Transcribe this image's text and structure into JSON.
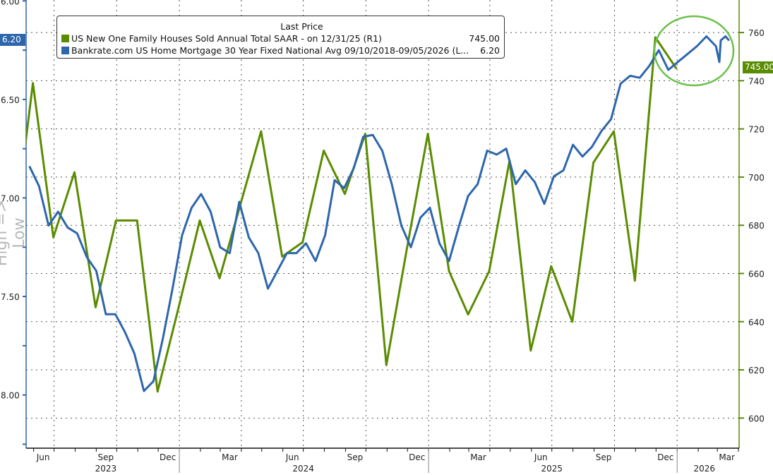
{
  "chart_data": {
    "type": "line",
    "ylabel_left": "High => Low",
    "legend": {
      "header": "Last Price",
      "placement": "top-left",
      "entries": [
        {
          "label": "US New One Family Houses Sold Annual Total SAAR -  on 12/31/25  (R1)",
          "value": "745.00",
          "color": "#5a8c00"
        },
        {
          "label": "Bankrate.com US Home Mortgage 30 Year Fixed National Avg 09/10/2018-09/05/2026  (L...",
          "value": "6.20",
          "color": "#2d66ab"
        }
      ]
    },
    "left_axis": {
      "range": [
        6.0,
        8.27
      ],
      "inverted": true,
      "ticks": [
        "6.00",
        "6.50",
        "7.00",
        "7.50",
        "8.00"
      ],
      "last_label": "6.20"
    },
    "right_axis": {
      "range": [
        587.5,
        773.5
      ],
      "ticks": [
        "600",
        "620",
        "640",
        "660",
        "680",
        "700",
        "720",
        "740",
        "760"
      ],
      "last_label": "745.00"
    },
    "x_axis": {
      "range": [
        "2023-05-21",
        "2026-04-02"
      ],
      "months": [
        {
          "label": "Jun",
          "date": "2023-06-15"
        },
        {
          "label": "Sep",
          "date": "2023-09-15"
        },
        {
          "label": "Dec",
          "date": "2023-12-15"
        },
        {
          "label": "Mar",
          "date": "2024-03-15"
        },
        {
          "label": "Jun",
          "date": "2024-06-15"
        },
        {
          "label": "Sep",
          "date": "2024-09-15"
        },
        {
          "label": "Dec",
          "date": "2024-12-15"
        },
        {
          "label": "Mar",
          "date": "2025-03-15"
        },
        {
          "label": "Jun",
          "date": "2025-06-15"
        },
        {
          "label": "Sep",
          "date": "2025-09-15"
        },
        {
          "label": "Dec",
          "date": "2025-12-15"
        },
        {
          "label": "Mar",
          "date": "2026-03-15"
        }
      ],
      "years": [
        {
          "label": "2023",
          "date": "2023-09-15"
        },
        {
          "label": "2024",
          "date": "2024-07-01"
        },
        {
          "label": "2025",
          "date": "2025-07-01"
        },
        {
          "label": "2026",
          "date": "2026-02-10"
        }
      ]
    },
    "grid": true,
    "series": [
      {
        "name": "US New One Family Houses Sold Annual Total SAAR",
        "axis": "right",
        "color": "#5a8c00",
        "points": [
          [
            "2023-04-30",
            668
          ],
          [
            "2023-05-31",
            739
          ],
          [
            "2023-06-30",
            675
          ],
          [
            "2023-07-31",
            702
          ],
          [
            "2023-08-31",
            646
          ],
          [
            "2023-09-30",
            682
          ],
          [
            "2023-10-31",
            682
          ],
          [
            "2023-11-30",
            611
          ],
          [
            "2023-12-31",
            646
          ],
          [
            "2024-01-31",
            682
          ],
          [
            "2024-02-29",
            658
          ],
          [
            "2024-03-31",
            689
          ],
          [
            "2024-04-30",
            719
          ],
          [
            "2024-05-31",
            667
          ],
          [
            "2024-06-30",
            673
          ],
          [
            "2024-07-31",
            711
          ],
          [
            "2024-08-31",
            693
          ],
          [
            "2024-09-30",
            718
          ],
          [
            "2024-10-31",
            622
          ],
          [
            "2024-11-30",
            670
          ],
          [
            "2024-12-31",
            718
          ],
          [
            "2025-01-31",
            661
          ],
          [
            "2025-02-28",
            643
          ],
          [
            "2025-03-31",
            661
          ],
          [
            "2025-04-30",
            707
          ],
          [
            "2025-05-31",
            628
          ],
          [
            "2025-06-30",
            663
          ],
          [
            "2025-07-31",
            640
          ],
          [
            "2025-08-31",
            706
          ],
          [
            "2025-09-30",
            719
          ],
          [
            "2025-10-31",
            657
          ],
          [
            "2025-11-30",
            758
          ],
          [
            "2025-12-31",
            745
          ]
        ]
      },
      {
        "name": "Bankrate.com US Home Mortgage 30 Year Fixed National Avg",
        "axis": "left",
        "color": "#2d66ab",
        "points": [
          [
            "2023-05-26",
            6.84
          ],
          [
            "2023-06-09",
            6.94
          ],
          [
            "2023-06-23",
            7.14
          ],
          [
            "2023-07-07",
            7.07
          ],
          [
            "2023-07-21",
            7.15
          ],
          [
            "2023-08-04",
            7.18
          ],
          [
            "2023-08-18",
            7.3
          ],
          [
            "2023-09-01",
            7.37
          ],
          [
            "2023-09-15",
            7.59
          ],
          [
            "2023-09-29",
            7.59
          ],
          [
            "2023-10-13",
            7.68
          ],
          [
            "2023-10-27",
            7.79
          ],
          [
            "2023-11-10",
            7.98
          ],
          [
            "2023-11-24",
            7.93
          ],
          [
            "2023-12-08",
            7.71
          ],
          [
            "2023-12-22",
            7.46
          ],
          [
            "2024-01-05",
            7.19
          ],
          [
            "2024-01-19",
            7.05
          ],
          [
            "2024-02-02",
            6.98
          ],
          [
            "2024-02-16",
            7.07
          ],
          [
            "2024-03-01",
            7.25
          ],
          [
            "2024-03-15",
            7.28
          ],
          [
            "2024-03-29",
            7.02
          ],
          [
            "2024-04-12",
            7.2
          ],
          [
            "2024-04-26",
            7.28
          ],
          [
            "2024-05-10",
            7.46
          ],
          [
            "2024-05-24",
            7.37
          ],
          [
            "2024-06-07",
            7.28
          ],
          [
            "2024-06-21",
            7.28
          ],
          [
            "2024-07-05",
            7.23
          ],
          [
            "2024-07-19",
            7.32
          ],
          [
            "2024-08-02",
            7.19
          ],
          [
            "2024-08-16",
            6.91
          ],
          [
            "2024-08-30",
            6.95
          ],
          [
            "2024-09-13",
            6.85
          ],
          [
            "2024-09-27",
            6.69
          ],
          [
            "2024-10-11",
            6.68
          ],
          [
            "2024-10-25",
            6.76
          ],
          [
            "2024-11-08",
            6.93
          ],
          [
            "2024-11-22",
            7.14
          ],
          [
            "2024-12-06",
            7.25
          ],
          [
            "2024-12-20",
            7.1
          ],
          [
            "2025-01-03",
            7.05
          ],
          [
            "2025-01-17",
            7.23
          ],
          [
            "2025-01-31",
            7.32
          ],
          [
            "2025-02-14",
            7.15
          ],
          [
            "2025-02-28",
            6.99
          ],
          [
            "2025-03-14",
            6.93
          ],
          [
            "2025-03-28",
            6.76
          ],
          [
            "2025-04-11",
            6.78
          ],
          [
            "2025-04-25",
            6.75
          ],
          [
            "2025-05-09",
            6.93
          ],
          [
            "2025-05-23",
            6.86
          ],
          [
            "2025-06-06",
            6.92
          ],
          [
            "2025-06-20",
            7.03
          ],
          [
            "2025-07-04",
            6.89
          ],
          [
            "2025-07-18",
            6.86
          ],
          [
            "2025-08-01",
            6.73
          ],
          [
            "2025-08-15",
            6.79
          ],
          [
            "2025-08-29",
            6.74
          ],
          [
            "2025-09-12",
            6.66
          ],
          [
            "2025-09-26",
            6.6
          ],
          [
            "2025-10-10",
            6.42
          ],
          [
            "2025-10-24",
            6.38
          ],
          [
            "2025-11-07",
            6.39
          ],
          [
            "2025-11-21",
            6.33
          ],
          [
            "2025-12-05",
            6.25
          ],
          [
            "2025-12-19",
            6.35
          ],
          [
            "2026-01-02",
            6.31
          ],
          [
            "2026-01-16",
            6.27
          ],
          [
            "2026-01-30",
            6.23
          ],
          [
            "2026-02-13",
            6.18
          ],
          [
            "2026-02-27",
            6.23
          ],
          [
            "2026-03-04",
            6.31
          ],
          [
            "2026-03-06",
            6.2
          ],
          [
            "2026-03-13",
            6.18
          ],
          [
            "2026-03-18",
            6.2
          ]
        ]
      }
    ]
  }
}
